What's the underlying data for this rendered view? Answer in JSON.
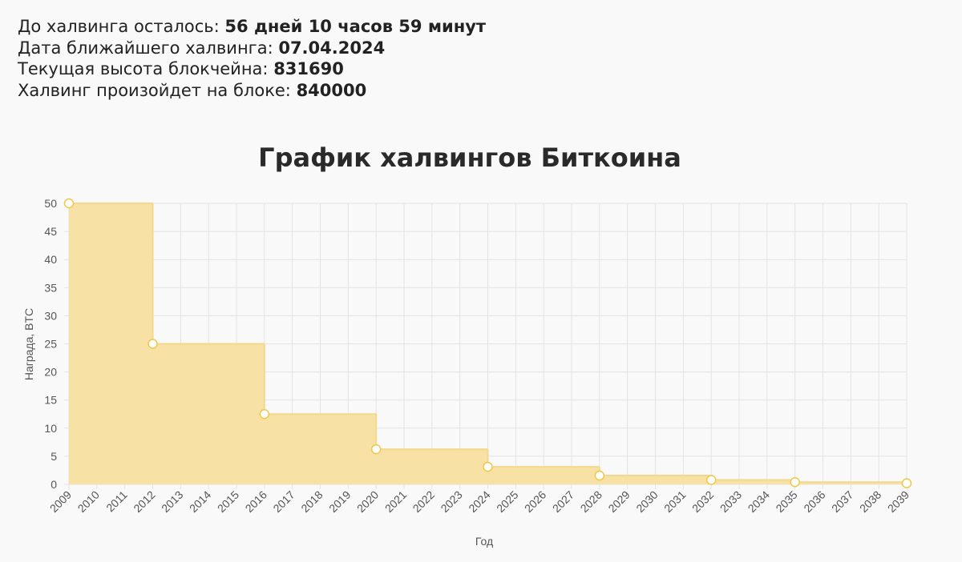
{
  "info": {
    "countdown_label": "До халвинга осталось: ",
    "countdown_value": "56 дней 10 часов 59 минут",
    "date_label": "Дата ближайшего халвинга: ",
    "date_value": "07.04.2024",
    "height_label": "Текущая высота блокчейна: ",
    "height_value": "831690",
    "block_label": "Халвинг произойдет на блоке: ",
    "block_value": "840000"
  },
  "chart_data": {
    "type": "area",
    "title": "График халвингов Биткоина",
    "xlabel": "Год",
    "ylabel": "Награда, BTC",
    "categories": [
      "2009",
      "2010",
      "2011",
      "2012",
      "2013",
      "2014",
      "2015",
      "2016",
      "2017",
      "2018",
      "2019",
      "2020",
      "2021",
      "2022",
      "2023",
      "2024",
      "2025",
      "2026",
      "2027",
      "2028",
      "2029",
      "2030",
      "2031",
      "2032",
      "2033",
      "2034",
      "2035",
      "2036",
      "2037",
      "2038",
      "2039"
    ],
    "points": [
      {
        "x": "2009",
        "y": 50
      },
      {
        "x": "2012",
        "y": 25
      },
      {
        "x": "2016",
        "y": 12.5
      },
      {
        "x": "2020",
        "y": 6.25
      },
      {
        "x": "2024",
        "y": 3.125
      },
      {
        "x": "2028",
        "y": 1.5625
      },
      {
        "x": "2032",
        "y": 0.78125
      },
      {
        "x": "2035",
        "y": 0.390625
      },
      {
        "x": "2039",
        "y": 0.1953125
      }
    ],
    "step": true,
    "ylim": [
      0,
      50
    ],
    "yticks": [
      0,
      5,
      10,
      15,
      20,
      25,
      30,
      35,
      40,
      45,
      50
    ],
    "grid": true,
    "colors": {
      "fill": "#f7e1a5",
      "line": "#f3d98b",
      "marker": "#f0c847",
      "grid": "#e3e3e3"
    }
  }
}
